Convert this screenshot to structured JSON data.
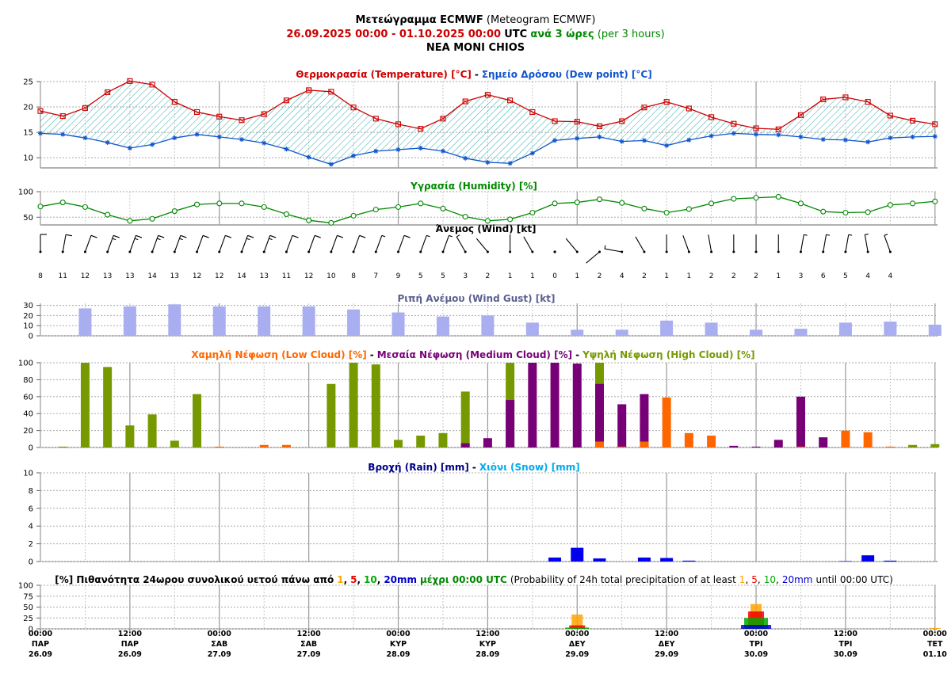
{
  "header": {
    "title_bold": "Μετεώγραμμα ECMWF",
    "title_rest": "(Meteogram ECMWF)",
    "period": "26.09.2025 00:00 - 01.10.2025 00:00",
    "utc": "UTC",
    "step_greek": "ανά 3 ώρες",
    "step_en": "(per 3 hours)",
    "location": "NEA MONI CHIOS"
  },
  "panels": {
    "temp": {
      "t1": "Θερμοκρασία (Temperature) [°C]",
      "sep": "-",
      "t2": "Σημείο Δρόσου (Dew point) [°C]"
    },
    "hum": {
      "t1": "Υγρασία (Humidity) [%]"
    },
    "wind": {
      "t1": "Άνεμος (Wind) [kt]"
    },
    "gust": {
      "t1": "Ριπή Ανέμου (Wind Gust) [kt]"
    },
    "cloud": {
      "t1": "Χαμηλή Νέφωση (Low Cloud) [%]",
      "t2": "Μεσαία Νέφωση (Medium Cloud) [%]",
      "t3": "Υψηλή Νέφωση (High Cloud) [%]",
      "sep": "-"
    },
    "rain": {
      "t1": "Βροχή (Rain) [mm]",
      "t2": "Χιόνι (Snow) [mm]",
      "sep": "-"
    },
    "prob": {
      "greek": "[%] Πιθανότητα 24ωρου συνολικού υετού πάνω από",
      "thr": [
        "1",
        "5",
        "10",
        "20mm"
      ],
      "greek_end": "μέχρι 00:00 UTC",
      "en": "(Probability of 24h total precipitation of at least",
      "en_end": "until 00:00 UTC)"
    }
  },
  "colors": {
    "title_dark": "#000000",
    "period_red": "#cc0000",
    "step_green": "#008800",
    "temp": "#cc0000",
    "dew": "#1155cc",
    "hatch": "#33aaaa",
    "humidity": "#008800",
    "gust": "#a8aef0",
    "gust_title": "#5a6090",
    "low_cloud": "#ff6600",
    "medium_cloud": "#770077",
    "high_cloud": "#779900",
    "rain": "#0000ee",
    "rain_title": "#000088",
    "snow": "#00aaee",
    "prob_1": "#ffa500",
    "prob_5": "#ee0000",
    "prob_10": "#00aa00",
    "prob_20": "#0000cc"
  },
  "chart_data": [
    {
      "type": "line",
      "title": "Θερμοκρασία (Temperature) [°C] - Σημείο Δρόσου (Dew point) [°C]",
      "x": [
        "26.09 00:00",
        "26.09 03:00",
        "26.09 06:00",
        "26.09 09:00",
        "26.09 12:00",
        "26.09 15:00",
        "26.09 18:00",
        "26.09 21:00",
        "27.09 00:00",
        "27.09 03:00",
        "27.09 06:00",
        "27.09 09:00",
        "27.09 12:00",
        "27.09 15:00",
        "27.09 18:00",
        "27.09 21:00",
        "28.09 00:00",
        "28.09 03:00",
        "28.09 06:00",
        "28.09 09:00",
        "28.09 12:00",
        "28.09 15:00",
        "28.09 18:00",
        "28.09 21:00",
        "29.09 00:00",
        "29.09 03:00",
        "29.09 06:00",
        "29.09 09:00",
        "29.09 12:00",
        "29.09 15:00",
        "29.09 18:00",
        "29.09 21:00",
        "30.09 00:00",
        "30.09 03:00",
        "30.09 06:00",
        "30.09 09:00",
        "30.09 12:00",
        "30.09 15:00",
        "30.09 18:00",
        "30.09 21:00",
        "01.10 00:00"
      ],
      "series": [
        {
          "name": "Temperature",
          "values": [
            19.2,
            18.2,
            19.8,
            22.9,
            25.1,
            24.4,
            21.0,
            19.0,
            18.1,
            17.4,
            18.6,
            21.3,
            23.3,
            23.0,
            19.9,
            17.7,
            16.6,
            15.7,
            17.7,
            21.1,
            22.4,
            21.3,
            19.0,
            17.2,
            17.1,
            16.2,
            17.2,
            19.9,
            21.0,
            19.7,
            18.0,
            16.7,
            15.8,
            15.6,
            18.4,
            21.5,
            21.9,
            21.0,
            18.3,
            17.3,
            16.6
          ]
        },
        {
          "name": "Dew point",
          "values": [
            14.8,
            14.6,
            13.9,
            13.0,
            11.9,
            12.6,
            13.9,
            14.6,
            14.1,
            13.6,
            12.9,
            11.7,
            10.1,
            8.7,
            10.4,
            11.3,
            11.6,
            11.9,
            11.3,
            9.9,
            9.1,
            8.9,
            10.9,
            13.4,
            13.8,
            14.1,
            13.2,
            13.4,
            12.4,
            13.5,
            14.3,
            14.8,
            14.6,
            14.5,
            14.1,
            13.6,
            13.5,
            13.1,
            13.9,
            14.1,
            14.2
          ]
        }
      ],
      "ylim": [
        8,
        25
      ],
      "yticks": [
        10,
        15,
        20,
        25
      ],
      "grid": true
    },
    {
      "type": "line",
      "title": "Υγρασία (Humidity) [%]",
      "series": [
        {
          "name": "Humidity",
          "values": [
            71,
            79,
            70,
            55,
            43,
            47,
            62,
            75,
            77,
            77,
            70,
            56,
            44,
            39,
            53,
            65,
            70,
            77,
            67,
            51,
            43,
            46,
            59,
            77,
            79,
            85,
            78,
            67,
            59,
            66,
            77,
            86,
            88,
            90,
            77,
            61,
            59,
            60,
            74,
            77,
            81
          ]
        }
      ],
      "ylim": [
        35,
        100
      ],
      "yticks": [
        50,
        100
      ],
      "grid": true
    },
    {
      "type": "table",
      "title": "Άνεμος (Wind) [kt]",
      "speed_kt": [
        8,
        11,
        12,
        13,
        13,
        14,
        13,
        12,
        12,
        14,
        13,
        11,
        12,
        10,
        8,
        7,
        9,
        5,
        5,
        3,
        2,
        1,
        1,
        0,
        1,
        2,
        4,
        2,
        1,
        1,
        2,
        2,
        2,
        1,
        3,
        6,
        5,
        4,
        4
      ],
      "direction_deg": [
        0,
        10,
        20,
        20,
        20,
        20,
        20,
        20,
        20,
        20,
        20,
        20,
        20,
        20,
        20,
        20,
        20,
        20,
        20,
        330,
        320,
        0,
        330,
        0,
        320,
        230,
        280,
        330,
        0,
        340,
        350,
        0,
        0,
        0,
        10,
        10,
        10,
        350,
        340
      ]
    },
    {
      "type": "bar",
      "title": "Ριπή Ανέμου (Wind Gust) [kt]",
      "values": [
        27,
        29,
        31,
        29,
        29,
        29,
        26,
        23,
        19,
        20,
        13,
        6,
        6,
        15,
        13,
        6,
        7,
        13,
        14,
        11
      ],
      "ylim": [
        0,
        32
      ],
      "yticks": [
        0,
        10,
        20,
        30
      ],
      "grid": true
    },
    {
      "type": "bar",
      "title": "Χαμηλή Νέφωση (Low Cloud) [%] - Μεσαία Νέφωση (Medium Cloud) [%] - Υψηλή Νέφωση (High Cloud) [%]",
      "series": [
        {
          "name": "Low Cloud",
          "values": [
            0,
            0,
            0,
            0,
            0,
            0,
            0,
            1,
            0,
            3,
            3,
            0,
            0,
            0,
            0,
            0,
            0,
            0,
            0,
            0,
            0,
            0,
            0,
            0,
            7,
            1,
            7,
            59,
            17,
            14,
            0,
            0,
            0,
            1,
            0,
            20,
            18,
            1,
            0,
            0
          ]
        },
        {
          "name": "Medium Cloud",
          "values": [
            0,
            0,
            0,
            0,
            0,
            0,
            0,
            0,
            0,
            0,
            0,
            0,
            0,
            0,
            0,
            0,
            0,
            0,
            5,
            11,
            56,
            100,
            100,
            99,
            75,
            51,
            63,
            0,
            0,
            0,
            2,
            1,
            9,
            60,
            12,
            0,
            0,
            0,
            0,
            0
          ]
        },
        {
          "name": "High Cloud",
          "values": [
            1,
            100,
            95,
            26,
            39,
            8,
            63,
            0,
            0,
            0,
            0,
            0,
            75,
            100,
            98,
            9,
            14,
            17,
            66,
            0,
            100,
            0,
            0,
            0,
            100,
            0,
            0,
            0,
            0,
            0,
            0,
            0,
            0,
            0,
            0,
            0,
            0,
            0,
            3,
            4
          ]
        }
      ],
      "ylim": [
        0,
        100
      ],
      "yticks": [
        0,
        20,
        40,
        60,
        80,
        100
      ],
      "grid": true
    },
    {
      "type": "bar",
      "title": "Βροχή (Rain) [mm] - Χιόνι (Snow) [mm]",
      "series": [
        {
          "name": "Rain",
          "values": [
            0,
            0,
            0,
            0,
            0,
            0,
            0,
            0,
            0,
            0,
            0,
            0,
            0,
            0,
            0,
            0,
            0,
            0,
            0,
            0,
            0,
            0,
            0.45,
            1.55,
            0.35,
            0,
            0.45,
            0.4,
            0.1,
            0,
            0,
            0,
            0,
            0,
            0,
            0.05,
            0.7,
            0.1,
            0,
            0
          ]
        },
        {
          "name": "Snow",
          "values": [
            0,
            0,
            0,
            0,
            0,
            0,
            0,
            0,
            0,
            0,
            0,
            0,
            0,
            0,
            0,
            0,
            0,
            0,
            0,
            0,
            0,
            0,
            0,
            0,
            0,
            0,
            0,
            0,
            0,
            0,
            0,
            0,
            0,
            0,
            0,
            0,
            0,
            0,
            0,
            0
          ]
        }
      ],
      "ylim": [
        0,
        10
      ],
      "yticks": [
        0,
        2,
        4,
        6,
        8,
        10
      ],
      "grid": true
    },
    {
      "type": "bar",
      "title": "[%] Πιθανότητα 24ωρου συνολικού υετού πάνω από 1, 5, 10, 20mm μέχρι 00:00 UTC",
      "categories": [
        "26.09",
        "27.09",
        "28.09",
        "29.09",
        "30.09",
        "01.10"
      ],
      "series": [
        {
          "name": "1",
          "values": [
            0,
            0,
            0,
            33,
            57,
            2
          ]
        },
        {
          "name": "5",
          "values": [
            0,
            0,
            0,
            8,
            40,
            0
          ]
        },
        {
          "name": "10",
          "values": [
            0,
            0,
            0,
            3,
            25,
            0
          ]
        },
        {
          "name": "20mm",
          "values": [
            0,
            0,
            0,
            0,
            9,
            0
          ]
        }
      ],
      "ylim": [
        0,
        100
      ],
      "yticks": [
        0,
        25,
        50,
        75,
        100
      ],
      "grid": true
    }
  ],
  "x_axis": [
    {
      "time": "00:00",
      "day": "ΠΑΡ",
      "date": "26.09"
    },
    {
      "time": "12:00",
      "day": "ΠΑΡ",
      "date": "26.09"
    },
    {
      "time": "00:00",
      "day": "ΣΑΒ",
      "date": "27.09"
    },
    {
      "time": "12:00",
      "day": "ΣΑΒ",
      "date": "27.09"
    },
    {
      "time": "00:00",
      "day": "ΚΥΡ",
      "date": "28.09"
    },
    {
      "time": "12:00",
      "day": "ΚΥΡ",
      "date": "28.09"
    },
    {
      "time": "00:00",
      "day": "ΔΕΥ",
      "date": "29.09"
    },
    {
      "time": "12:00",
      "day": "ΔΕΥ",
      "date": "29.09"
    },
    {
      "time": "00:00",
      "day": "ΤΡΙ",
      "date": "30.09"
    },
    {
      "time": "12:00",
      "day": "ΤΡΙ",
      "date": "30.09"
    },
    {
      "time": "00:00",
      "day": "ΤΕΤ",
      "date": "01.10"
    }
  ]
}
